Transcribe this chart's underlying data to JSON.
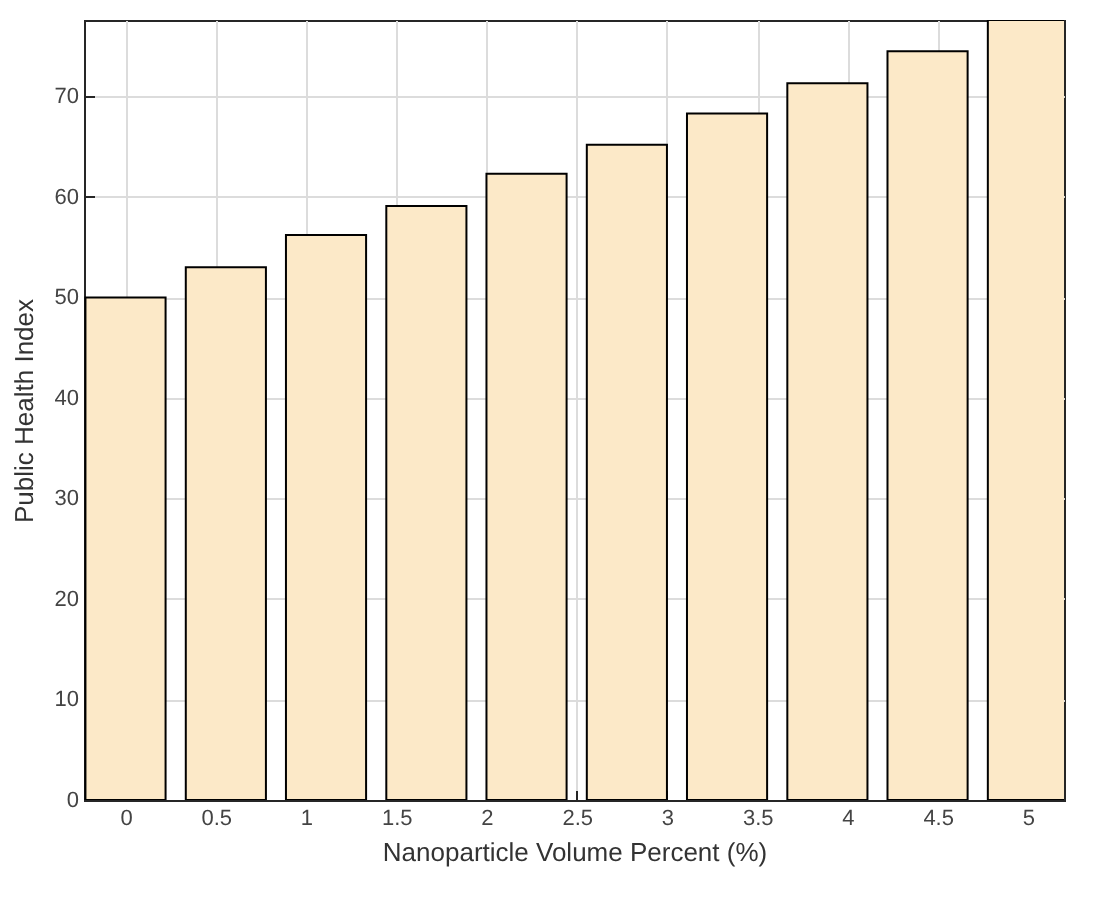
{
  "chart_data": {
    "type": "bar",
    "xlabel": "Nanoparticle Volume Percent (%)",
    "ylabel": "Public Health Index",
    "x": [
      0,
      0.556,
      1.111,
      1.667,
      2.222,
      2.778,
      3.333,
      3.889,
      4.444,
      5
    ],
    "values": [
      50,
      53,
      56.2,
      59.1,
      62.3,
      65.2,
      68.3,
      71.3,
      74.5,
      77.6
    ],
    "color": "#fce9c8",
    "xlim": [
      -0.23,
      5.2
    ],
    "xticks": [
      0,
      0.5,
      1,
      1.5,
      2,
      2.5,
      3,
      3.5,
      4,
      4.5,
      5
    ],
    "ylim": [
      0,
      77.6
    ],
    "yticks": [
      0,
      10,
      20,
      30,
      40,
      50,
      60,
      70
    ],
    "grid": true
  }
}
